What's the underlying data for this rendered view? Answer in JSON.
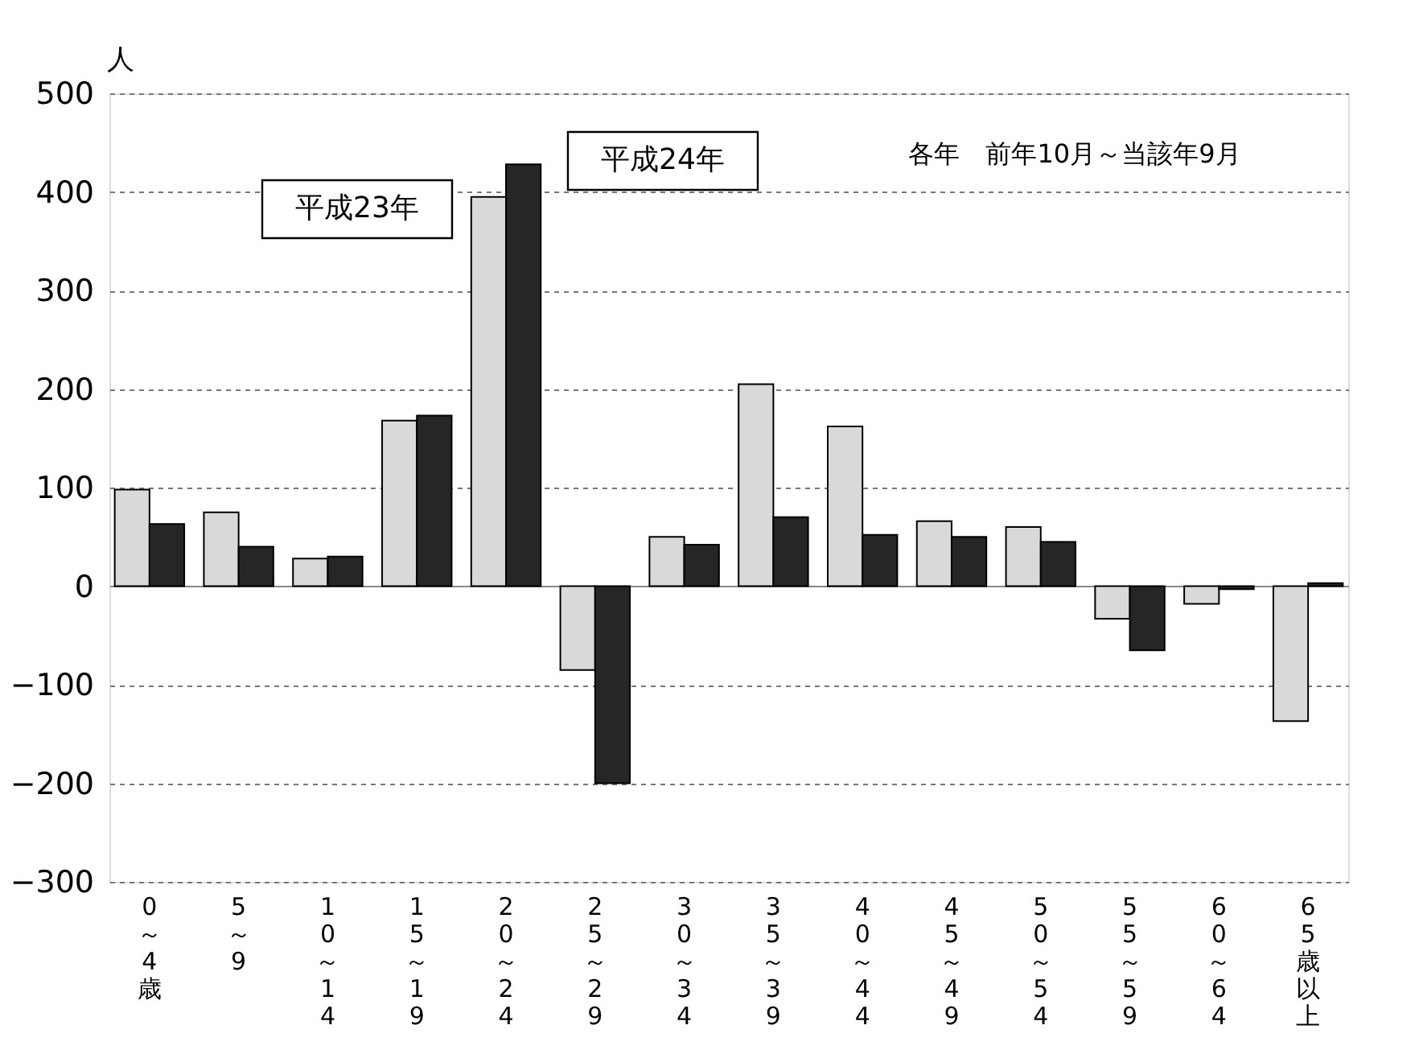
{
  "chart_data": {
    "type": "bar",
    "ylabel": "人",
    "categories": [
      "0～4歳",
      "5～9",
      "10～14",
      "15～19",
      "20～24",
      "25～29",
      "30～34",
      "35～39",
      "40～44",
      "45～49",
      "50～54",
      "55～59",
      "60～64",
      "65歳以上"
    ],
    "series": [
      {
        "name": "平成23年",
        "color": "#d9d9d9",
        "values": [
          98,
          75,
          28,
          168,
          395,
          -85,
          50,
          205,
          162,
          66,
          60,
          -33,
          -18,
          -137
        ]
      },
      {
        "name": "平成24年",
        "color": "#262626",
        "values": [
          63,
          40,
          30,
          173,
          428,
          -200,
          42,
          70,
          52,
          50,
          45,
          -65,
          -3,
          3
        ]
      }
    ],
    "ylim": [
      -300,
      500
    ],
    "yticks": [
      -300,
      -200,
      -100,
      0,
      100,
      200,
      300,
      400,
      500
    ],
    "grid": "y",
    "annotations": [
      "各年　前年10月～当該年9月"
    ]
  }
}
